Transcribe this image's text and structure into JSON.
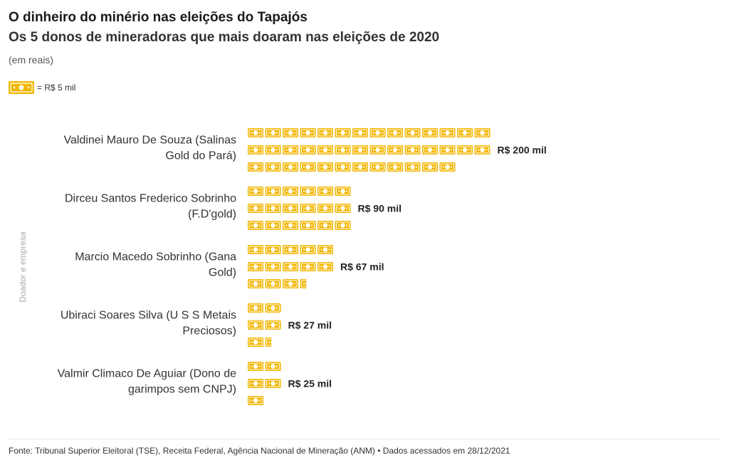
{
  "title": "O dinheiro do minério nas eleições do Tapajós",
  "subtitle": "Os 5 donos de mineradoras que mais doaram nas eleições de 2020",
  "unit_note": "(em reais)",
  "legend": {
    "label": "= R$ 5 mil",
    "icon": "banknote-icon",
    "color": "#f2b705"
  },
  "chart_data": {
    "type": "bar",
    "icon": "banknote-icon",
    "unit_per_icon": 5,
    "unit": "R$ mil",
    "ylabel": "Doador e empresa",
    "categories": [
      "Valdinei Mauro De Souza (Salinas Gold do Pará)",
      "Dirceu Santos Frederico Sobrinho (F.D'gold)",
      "Marcio Macedo Sobrinho (Gana Gold)",
      "Ubiraci Soares Silva (U S S Metais Preciosos)",
      "Valmir Climaco De Aguiar (Dono de garimpos sem CNPJ)"
    ],
    "label_lines": [
      [
        "Valdinei Mauro De Souza (Salinas",
        "Gold do Pará)"
      ],
      [
        "Dirceu Santos Frederico Sobrinho",
        "(F.D'gold)"
      ],
      [
        "Marcio Macedo Sobrinho (Gana",
        "Gold)"
      ],
      [
        "Ubiraci Soares Silva (U S S Metais",
        "Preciosos)"
      ],
      [
        "Valmir Climaco De Aguiar (Dono de",
        "garimpos sem CNPJ)"
      ]
    ],
    "values": [
      200,
      90,
      67,
      27,
      25
    ],
    "value_labels": [
      "R$ 200 mil",
      "R$ 90 mil",
      "R$ 67 mil",
      "R$ 27 mil",
      "R$ 25 mil"
    ],
    "color": "#f2b705"
  },
  "footer": {
    "source": "Fonte: Tribunal Superior Eleitoral (TSE), Receita Federal, Agência Nacional de Mineração (ANM) • Dados acessados em 28/12/2021"
  }
}
